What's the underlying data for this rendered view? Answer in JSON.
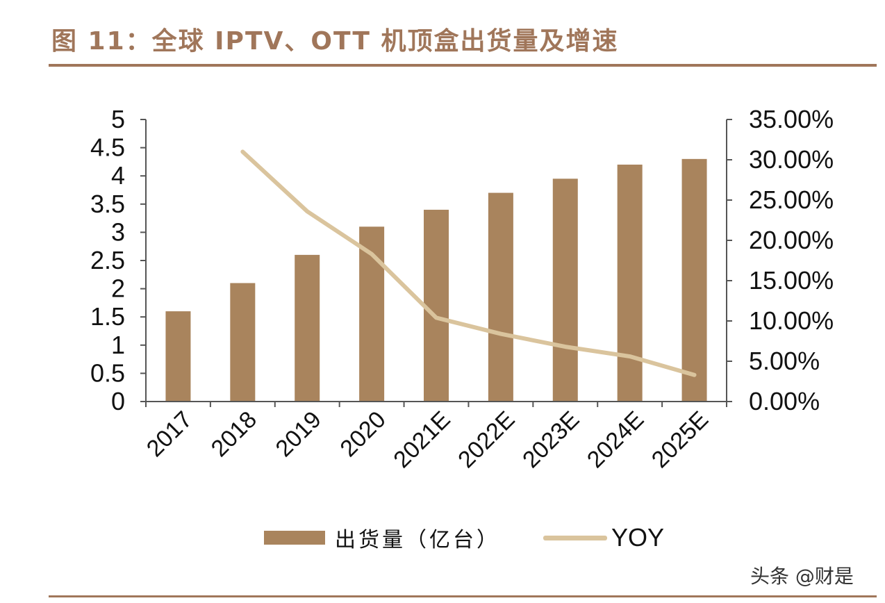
{
  "figure": {
    "title": "图 11：全球 IPTV、OTT 机顶盒出货量及增速",
    "watermark": "头条 @财是"
  },
  "colors": {
    "accent": "#a0765a",
    "bar": "#a9845d",
    "line": "#dac49d",
    "axis": "#555555"
  },
  "chart_data": {
    "type": "bar",
    "categories": [
      "2017",
      "2018",
      "2019",
      "2020",
      "2021E",
      "2022E",
      "2023E",
      "2024E",
      "2025E"
    ],
    "series": [
      {
        "name": "出货量（亿台）",
        "type": "bar",
        "axis": "left",
        "values": [
          1.6,
          2.1,
          2.6,
          3.1,
          3.4,
          3.7,
          3.95,
          4.2,
          4.3
        ]
      },
      {
        "name": "YOY",
        "type": "line",
        "axis": "right",
        "values": [
          null,
          31.0,
          23.6,
          18.3,
          10.4,
          8.4,
          6.8,
          5.6,
          3.3
        ]
      }
    ],
    "y_left": {
      "ylim": [
        0,
        5
      ],
      "ticks": [
        "0",
        "0.5",
        "1",
        "1.5",
        "2",
        "2.5",
        "3",
        "3.5",
        "4",
        "4.5",
        "5"
      ]
    },
    "y_right": {
      "ylim": [
        0,
        35
      ],
      "ticks": [
        "0.00%",
        "5.00%",
        "10.00%",
        "15.00%",
        "20.00%",
        "25.00%",
        "30.00%",
        "35.00%"
      ]
    },
    "legend": {
      "position": "bottom",
      "bar_label": "出货量（亿台）",
      "line_label": "YOY"
    },
    "grid": false
  }
}
